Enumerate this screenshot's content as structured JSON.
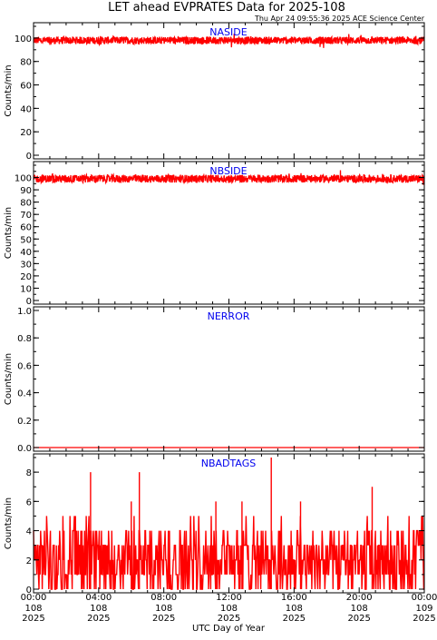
{
  "figure": {
    "title": "LET ahead EVPRATES Data for 2025-108",
    "subtitle": "Thu Apr 24 09:55:36 2025 ACE Science Center",
    "xlabel": "UTC Day of Year",
    "series_color": "#ff0000",
    "label_color": "#0000ee"
  },
  "chart_data": [
    {
      "type": "line",
      "label": "NASIDE",
      "ylabel": "Counts/min",
      "xlim": [
        0,
        24
      ],
      "ylim": [
        0,
        110
      ],
      "yticks": [
        "0",
        "20",
        "40",
        "60",
        "80",
        "100"
      ],
      "ytick_values": [
        0,
        20,
        40,
        60,
        80,
        100
      ],
      "points": 1440,
      "mean": 98,
      "spread": 2,
      "x": [
        0,
        2,
        4,
        6,
        8,
        10,
        12,
        14,
        16,
        18,
        20,
        22,
        24
      ],
      "values": [
        99,
        98,
        98,
        97,
        98,
        98,
        99,
        98,
        99,
        98,
        99,
        98,
        98
      ]
    },
    {
      "type": "line",
      "label": "NBSIDE",
      "ylabel": "Counts/min",
      "xlim": [
        0,
        24
      ],
      "ylim": [
        0,
        110
      ],
      "yticks": [
        "0",
        "10",
        "20",
        "30",
        "40",
        "50",
        "60",
        "70",
        "80",
        "90",
        "100"
      ],
      "ytick_values": [
        0,
        10,
        20,
        30,
        40,
        50,
        60,
        70,
        80,
        90,
        100
      ],
      "points": 1440,
      "mean": 99,
      "spread": 2,
      "x": [
        0,
        2,
        4,
        6,
        8,
        10,
        12,
        14,
        16,
        18,
        20,
        22,
        24
      ],
      "values": [
        99,
        99,
        98,
        98,
        98,
        99,
        100,
        99,
        99,
        99,
        99,
        99,
        99
      ]
    },
    {
      "type": "line",
      "label": "NERROR",
      "ylabel": "Counts/min",
      "xlim": [
        0,
        24
      ],
      "ylim": [
        0,
        1.0
      ],
      "yticks": [
        "0.0",
        "0.2",
        "0.4",
        "0.6",
        "0.8",
        "1.0"
      ],
      "ytick_values": [
        0,
        0.2,
        0.4,
        0.6,
        0.8,
        1.0
      ],
      "points": 2,
      "mean": 0,
      "spread": 0,
      "x": [
        0,
        24
      ],
      "values": [
        0,
        0
      ]
    },
    {
      "type": "line",
      "label": "NBADTAGS",
      "ylabel": "Counts/min",
      "xlim": [
        0,
        24
      ],
      "ylim": [
        0,
        9
      ],
      "yticks": [
        "0",
        "2",
        "4",
        "6",
        "8"
      ],
      "ytick_values": [
        0,
        2,
        4,
        6,
        8
      ],
      "points": 720,
      "mean": 2,
      "spread": 2,
      "x": [
        0,
        3.5,
        6.5,
        14.6,
        20.8,
        24
      ],
      "values": [
        2,
        8,
        8,
        9,
        7,
        2
      ],
      "max": 9
    }
  ],
  "x_axis": {
    "ticks": [
      {
        "time": "00:00",
        "doy": "108",
        "year": "2025",
        "x": 0
      },
      {
        "time": "04:00",
        "doy": "108",
        "year": "2025",
        "x": 4
      },
      {
        "time": "08:00",
        "doy": "108",
        "year": "2025",
        "x": 8
      },
      {
        "time": "12:00",
        "doy": "108",
        "year": "2025",
        "x": 12
      },
      {
        "time": "16:00",
        "doy": "108",
        "year": "2025",
        "x": 16
      },
      {
        "time": "20:00",
        "doy": "108",
        "year": "2025",
        "x": 20
      },
      {
        "time": "00:00",
        "doy": "109",
        "year": "2025",
        "x": 24
      }
    ]
  }
}
